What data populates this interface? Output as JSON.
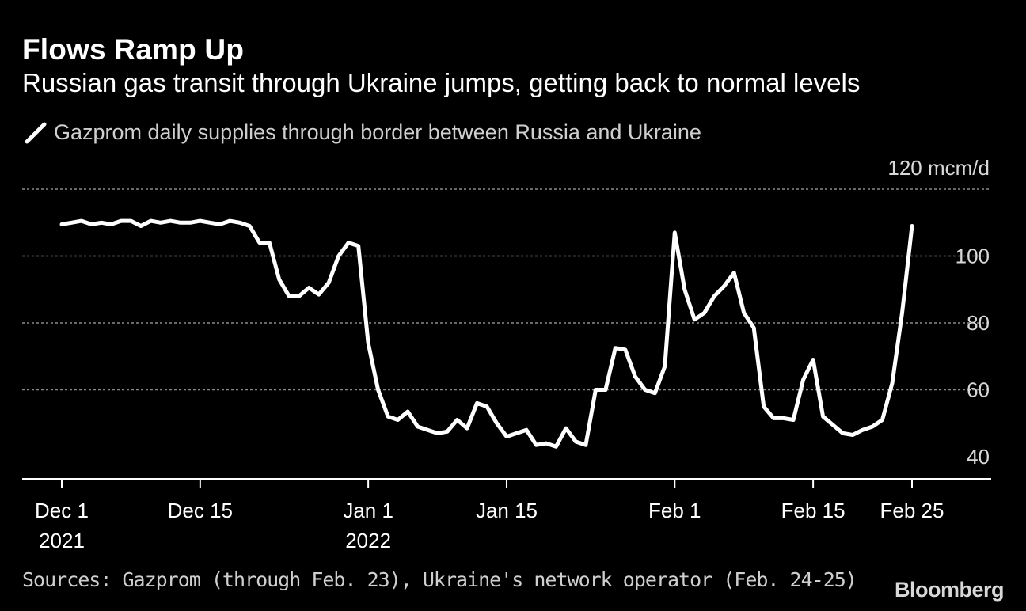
{
  "colors": {
    "background": "#000000",
    "line": "#ffffff",
    "grid": "#8a8a8a"
  },
  "chart_data": {
    "type": "line",
    "title": "Flows Ramp Up",
    "subtitle": "Russian gas transit through Ukraine jumps, getting back to normal levels",
    "legend": "Gazprom daily supplies through border between Russia and Ukraine",
    "unit": "mcm/d",
    "ylim": [
      36,
      120
    ],
    "yticks": [
      40,
      60,
      80,
      100,
      120
    ],
    "ytick_labels": [
      "40",
      "60",
      "80",
      "100",
      "120 mcm/d"
    ],
    "xticks": [
      {
        "day": 0,
        "line1": "Dec 1",
        "line2": "2021"
      },
      {
        "day": 14,
        "line1": "Dec 15",
        "line2": ""
      },
      {
        "day": 31,
        "line1": "Jan 1",
        "line2": "2022"
      },
      {
        "day": 45,
        "line1": "Jan 15",
        "line2": ""
      },
      {
        "day": 62,
        "line1": "Feb 1",
        "line2": ""
      },
      {
        "day": 76,
        "line1": "Feb 15",
        "line2": ""
      },
      {
        "day": 86,
        "line1": "Feb 25",
        "line2": ""
      }
    ],
    "x_start_label": "Dec 1 2021",
    "series": [
      {
        "name": "Gazprom daily supplies through border between Russia and Ukraine",
        "x": [
          0,
          1,
          2,
          3,
          4,
          5,
          6,
          7,
          8,
          9,
          10,
          11,
          12,
          13,
          14,
          15,
          16,
          17,
          18,
          19,
          20,
          21,
          22,
          23,
          24,
          25,
          26,
          27,
          28,
          29,
          30,
          31,
          32,
          33,
          34,
          35,
          36,
          37,
          38,
          39,
          40,
          41,
          42,
          43,
          44,
          45,
          46,
          47,
          48,
          49,
          50,
          51,
          52,
          53,
          54,
          55,
          56,
          57,
          58,
          59,
          60,
          61,
          62,
          63,
          64,
          65,
          66,
          67,
          68,
          69,
          70,
          71,
          72,
          73,
          74,
          75,
          76,
          77,
          78,
          79,
          80,
          81,
          82,
          83,
          84,
          85,
          86
        ],
        "values": [
          109.5,
          110,
          110.5,
          109.5,
          110,
          109.5,
          110.5,
          110.5,
          109,
          110.5,
          110,
          110.5,
          110,
          110,
          110.5,
          110,
          109.5,
          110.5,
          110,
          109,
          104,
          104,
          93,
          88,
          88,
          90.5,
          88.5,
          92,
          100,
          104,
          103,
          74,
          60,
          52,
          51,
          53.5,
          49,
          48,
          47,
          47.5,
          51,
          48.5,
          56,
          55,
          50,
          46,
          47,
          48,
          43.5,
          44,
          43,
          48.5,
          44.5,
          43.5,
          60,
          60,
          72.5,
          72,
          64,
          60,
          59,
          67,
          107,
          90,
          81,
          83,
          88,
          91,
          95,
          83,
          78.5,
          55,
          51.5,
          51.5,
          51,
          63,
          69,
          52,
          49.5,
          47,
          46.5,
          48,
          49,
          51,
          62,
          83,
          109
        ]
      }
    ],
    "source": "Sources: Gazprom (through Feb. 23), Ukraine's network operator (Feb. 24-25)",
    "brand": "Bloomberg"
  }
}
